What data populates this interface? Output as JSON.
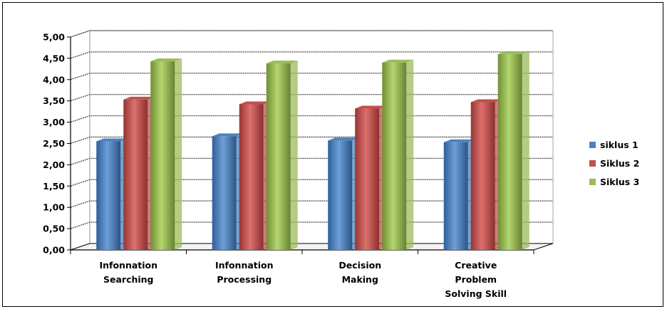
{
  "chart_data": {
    "type": "bar",
    "title": "",
    "xlabel": "",
    "ylabel": "",
    "categories": [
      [
        "Infonnation",
        "Searching"
      ],
      [
        "Infonnation",
        "Processing"
      ],
      [
        "Decision",
        "Making"
      ],
      [
        "Creative",
        "Problem",
        "Solving Skill"
      ]
    ],
    "series": [
      {
        "name": "siklus 1",
        "color": "#4f81bd",
        "values": [
          2.55,
          2.67,
          2.57,
          2.53
        ]
      },
      {
        "name": "Siklus 2",
        "color": "#c0504d",
        "values": [
          3.53,
          3.42,
          3.32,
          3.47
        ]
      },
      {
        "name": "Siklus 3",
        "color": "#9bbb59",
        "values": [
          4.43,
          4.38,
          4.4,
          4.6
        ]
      }
    ],
    "y_ticks": [
      "0,00",
      "0,50",
      "1,00",
      "1,50",
      "2,00",
      "2,50",
      "3,00",
      "3,50",
      "4,00",
      "4,50",
      "5,00"
    ],
    "ylim": [
      0,
      5
    ],
    "grid": true,
    "legend": "right",
    "style": "3d-column"
  }
}
